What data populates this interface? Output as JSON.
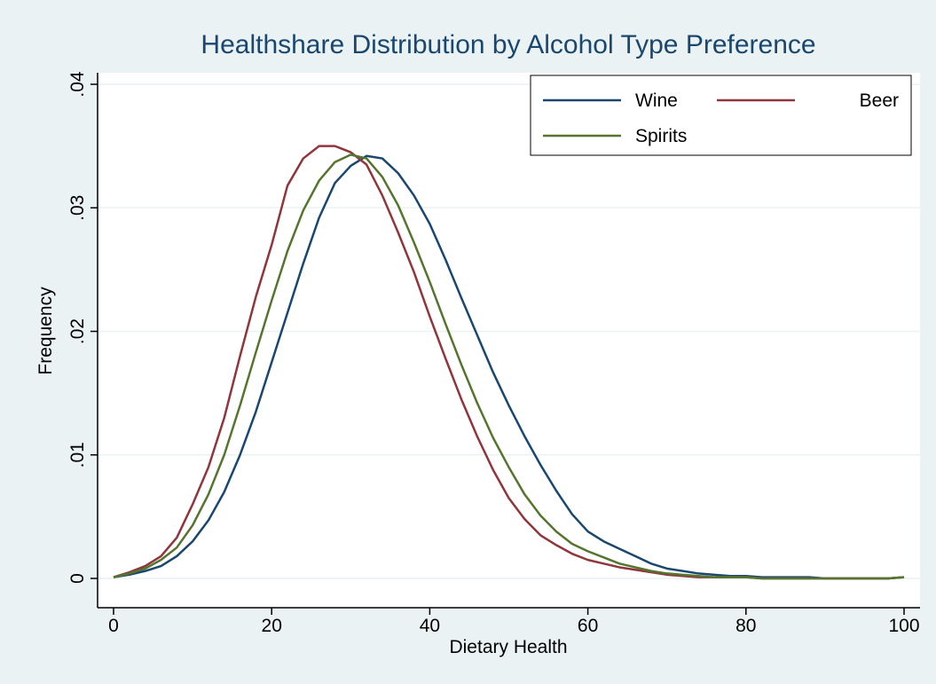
{
  "chart_data": {
    "type": "line",
    "title": "Healthshare Distribution by Alcohol Type Preference",
    "xlabel": "Dietary Health",
    "ylabel": "Frequency",
    "x": [
      0,
      2,
      4,
      6,
      8,
      10,
      12,
      14,
      16,
      18,
      20,
      22,
      24,
      26,
      28,
      30,
      32,
      34,
      36,
      38,
      40,
      42,
      44,
      46,
      48,
      50,
      52,
      54,
      56,
      58,
      60,
      62,
      64,
      66,
      68,
      70,
      72,
      74,
      76,
      78,
      80,
      82,
      84,
      86,
      88,
      90,
      92,
      94,
      96,
      98,
      100
    ],
    "series": [
      {
        "name": "Wine",
        "color": "#1a476f",
        "values": [
          0.0001,
          0.0003,
          0.0006,
          0.001,
          0.0018,
          0.003,
          0.0047,
          0.007,
          0.01,
          0.0135,
          0.0175,
          0.0215,
          0.0255,
          0.0292,
          0.032,
          0.0334,
          0.0342,
          0.034,
          0.0328,
          0.031,
          0.0287,
          0.0258,
          0.0227,
          0.0197,
          0.0167,
          0.014,
          0.0115,
          0.0092,
          0.0071,
          0.0052,
          0.0038,
          0.003,
          0.0024,
          0.0018,
          0.0012,
          0.0008,
          0.0006,
          0.0004,
          0.0003,
          0.0002,
          0.0002,
          0.0001,
          0.0001,
          0.0001,
          0.0001,
          0,
          0,
          0,
          0,
          0,
          0.0001
        ]
      },
      {
        "name": "Beer",
        "color": "#90353b",
        "values": [
          0.0001,
          0.0005,
          0.001,
          0.0018,
          0.0033,
          0.006,
          0.009,
          0.013,
          0.018,
          0.0228,
          0.027,
          0.0318,
          0.034,
          0.035,
          0.035,
          0.0345,
          0.0335,
          0.031,
          0.028,
          0.0248,
          0.0212,
          0.0178,
          0.0145,
          0.0115,
          0.0088,
          0.0065,
          0.0048,
          0.0035,
          0.0027,
          0.002,
          0.0015,
          0.0012,
          0.0009,
          0.0007,
          0.0005,
          0.0003,
          0.0002,
          0.0001,
          0.0001,
          0.0001,
          0.0001,
          0,
          0,
          0,
          0,
          0,
          0,
          0,
          0,
          0,
          0.0001
        ]
      },
      {
        "name": "Spirits",
        "color": "#55752f",
        "values": [
          0.0001,
          0.0004,
          0.0008,
          0.0015,
          0.0025,
          0.0043,
          0.0068,
          0.01,
          0.014,
          0.0183,
          0.0225,
          0.0265,
          0.0298,
          0.0322,
          0.0337,
          0.0343,
          0.034,
          0.0325,
          0.0302,
          0.0272,
          0.024,
          0.0206,
          0.0173,
          0.0142,
          0.0114,
          0.009,
          0.0068,
          0.0051,
          0.0038,
          0.0028,
          0.0022,
          0.0017,
          0.0012,
          0.0009,
          0.0006,
          0.0004,
          0.0003,
          0.0002,
          0.0001,
          0.0001,
          0.0001,
          0,
          0,
          0,
          0,
          0,
          0,
          0,
          0,
          0,
          0.0001
        ]
      }
    ],
    "xlim": [
      0,
      100
    ],
    "xticks": [
      0,
      20,
      40,
      60,
      80,
      100
    ],
    "ylim": [
      0,
      0.04
    ],
    "yticks": [
      0,
      {
        "value": 0.01,
        "label": ".01"
      },
      {
        "value": 0.02,
        "label": ".02"
      },
      {
        "value": 0.03,
        "label": ".03"
      },
      {
        "value": 0.04,
        "label": ".04"
      }
    ],
    "grid": true,
    "legend": "top-right"
  }
}
